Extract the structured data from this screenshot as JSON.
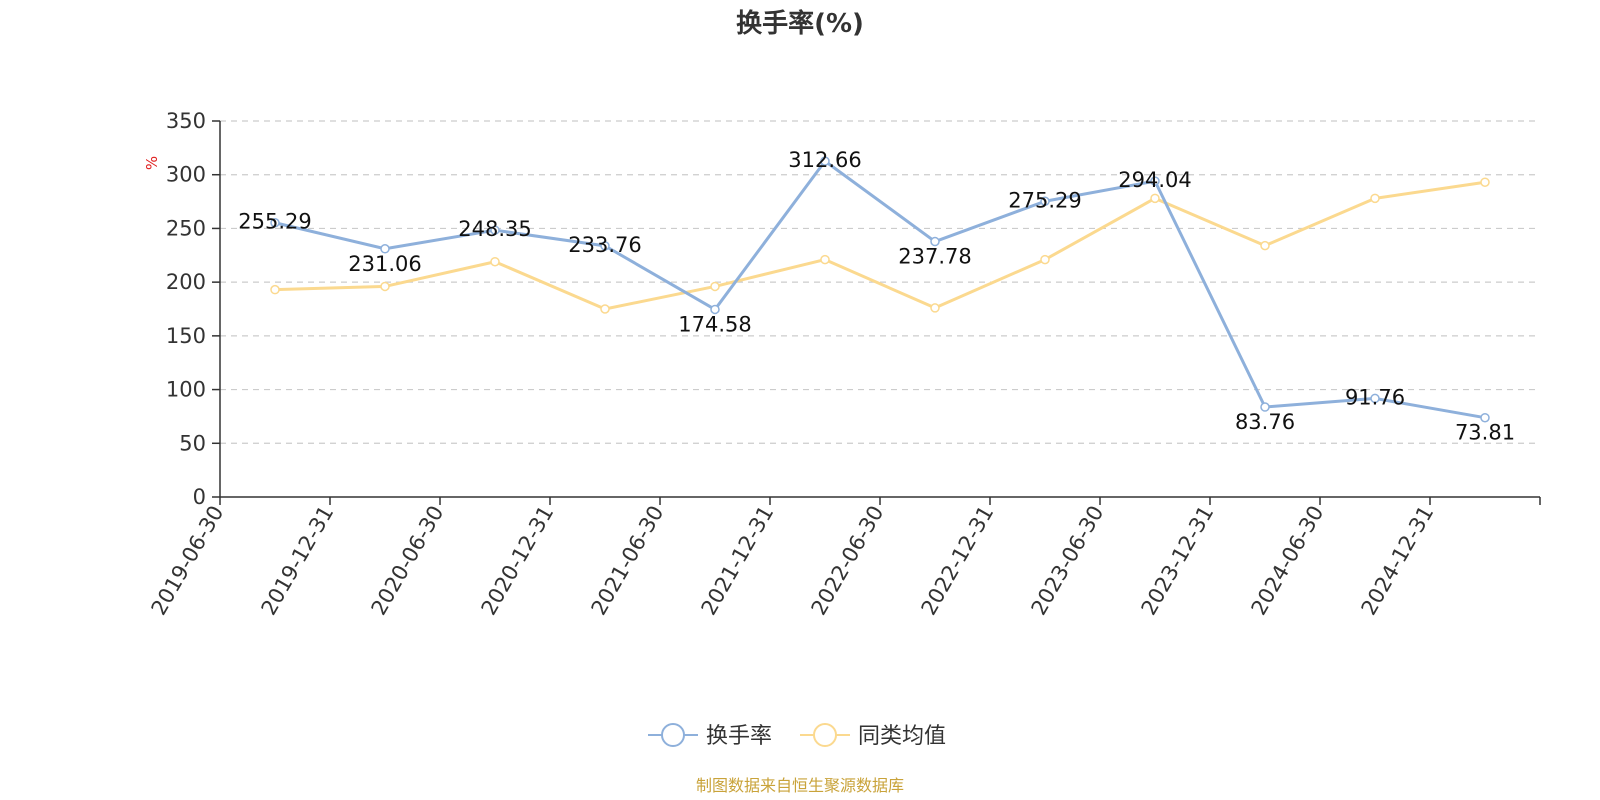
{
  "chart_data": {
    "type": "line",
    "title": "换手率(%)",
    "ylabel": "%",
    "xlabel": "",
    "ylim": [
      0,
      350
    ],
    "yticks": [
      0,
      50,
      100,
      150,
      200,
      250,
      300,
      350
    ],
    "grid": true,
    "legend_position": "bottom-center",
    "categories": [
      "2019-06-30",
      "2019-12-31",
      "2020-06-30",
      "2020-12-31",
      "2021-06-30",
      "2021-12-31",
      "2022-06-30",
      "2022-12-31",
      "2023-06-30",
      "2023-12-31",
      "2024-06-30",
      "2024-12-31"
    ],
    "series": [
      {
        "name": "换手率",
        "color": "#8eb0db",
        "show_labels": true,
        "values": [
          255.29,
          231.06,
          248.35,
          233.76,
          174.58,
          312.66,
          237.78,
          275.29,
          294.04,
          83.76,
          91.76,
          73.81
        ],
        "labels": [
          "255.29",
          "231.06",
          "248.35",
          "233.76",
          "174.58",
          "312.66",
          "237.78",
          "275.29",
          "294.04",
          "83.76",
          "91.76",
          "73.81"
        ]
      },
      {
        "name": "同类均值",
        "color": "#fbd98f",
        "show_labels": false,
        "values": [
          193,
          196,
          219,
          175,
          196,
          221,
          176,
          221,
          278,
          234,
          278,
          293
        ]
      }
    ],
    "source": "制图数据来自恒生聚源数据库"
  }
}
